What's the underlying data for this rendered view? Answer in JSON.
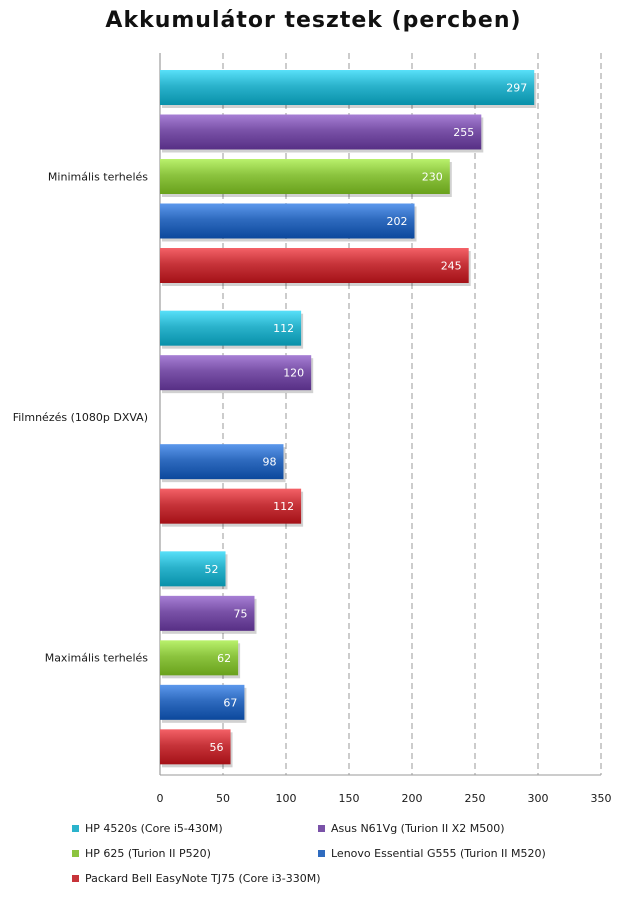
{
  "chart_data": {
    "type": "bar",
    "orientation": "horizontal",
    "title": "Akkumulátor tesztek (percben)",
    "categories": [
      "Minimális terhelés",
      "Filmnézés (1080p DXVA)",
      "Maximális terhelés"
    ],
    "series": [
      {
        "name": "HP 4520s (Core i5-430M)",
        "color": "#2bb3cc",
        "values": [
          297,
          112,
          52
        ]
      },
      {
        "name": "Asus N61Vg (Turion II X2 M500)",
        "color": "#7a52a8",
        "values": [
          255,
          120,
          75
        ]
      },
      {
        "name": "HP 625 (Turion II P520)",
        "color": "#8cc43f",
        "values": [
          230,
          null,
          62
        ]
      },
      {
        "name": "Lenovo Essential G555 (Turion II M520)",
        "color": "#2f6bbf",
        "values": [
          202,
          98,
          67
        ]
      },
      {
        "name": "Packard Bell EasyNote TJ75 (Core i3-330M)",
        "color": "#c7343a",
        "values": [
          245,
          112,
          56
        ]
      }
    ],
    "xlim": [
      0,
      350
    ],
    "xticks": [
      "0",
      "50",
      "100",
      "150",
      "200",
      "250",
      "300",
      "350"
    ],
    "grid": true,
    "legend_position": "bottom"
  }
}
